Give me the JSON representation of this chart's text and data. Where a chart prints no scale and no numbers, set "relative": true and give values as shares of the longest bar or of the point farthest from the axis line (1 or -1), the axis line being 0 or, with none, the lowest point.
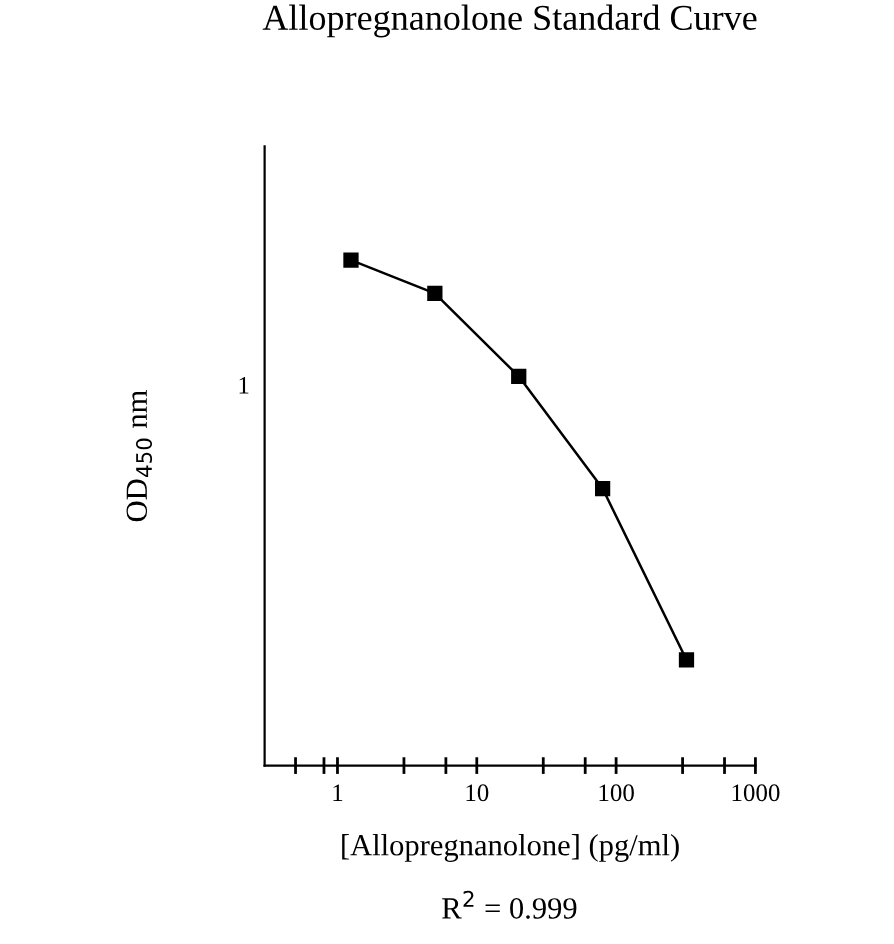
{
  "chart_data": {
    "type": "line",
    "title": "Allopregnanolone Standard Curve",
    "xlabel": "[Allopregnanolone] (pg/ml)",
    "ylabel": "OD$_{450}$ nm",
    "relative": true,
    "log": "x",
    "x": [
      1.25,
      5,
      20,
      80,
      320
    ],
    "series": [
      {
        "color": "#000000",
        "values": [
          1,
          0.934,
          0.77,
          0.548,
          0.209
        ]
      }
    ],
    "xlim": [
      0.3,
      1000
    ],
    "xticks": [
      {
        "value": 0.5,
        "label": null
      },
      {
        "value": 0.8,
        "label": null
      },
      1,
      {
        "value": 3,
        "label": null
      },
      {
        "value": 6,
        "label": null
      },
      10,
      {
        "value": 30,
        "label": null
      },
      {
        "value": 60,
        "label": null
      },
      100,
      {
        "value": 300,
        "label": null
      },
      {
        "value": 600,
        "label": null
      },
      1000
    ],
    "marker": "square",
    "line_style": "solid",
    "grid": false,
    "legend": false,
    "annotations": [
      "1",
      "R$^{2}$ = 0.999"
    ]
  }
}
